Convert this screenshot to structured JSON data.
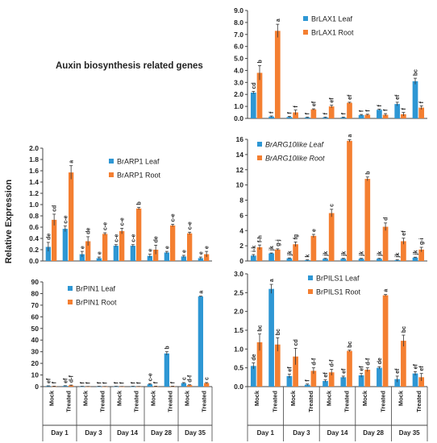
{
  "figure": {
    "title": "Auxin biosynthesis related genes",
    "ylabel": "Relative Expression"
  },
  "chart_data": [
    {
      "type": "bar",
      "panel": "top-right",
      "ylim": [
        0,
        9
      ],
      "yticks": [
        "0.0",
        "1.0",
        "2.0",
        "3.0",
        "4.0",
        "5.0",
        "6.0",
        "7.0",
        "8.0",
        "9.0"
      ],
      "legend_italic": false,
      "series": [
        {
          "name": "BrLAX1 Leaf",
          "color": "#2e97d4",
          "values": [
            2.15,
            0.15,
            0.12,
            0.08,
            0.08,
            0.08,
            0.28,
            0.72,
            1.2,
            3.1
          ],
          "errors": [
            0.1,
            0.05,
            0.05,
            0.03,
            0.03,
            0.03,
            0.05,
            0.05,
            0.15,
            0.25
          ],
          "letters": [
            "cd",
            "f",
            "f",
            "f",
            "f",
            "f",
            "f",
            "f",
            "ef",
            "bc"
          ]
        },
        {
          "name": "BrLAX1 Root",
          "color": "#f47f31",
          "values": [
            3.8,
            7.3,
            0.5,
            0.75,
            1.0,
            1.3,
            0.3,
            0.3,
            0.35,
            0.9
          ],
          "errors": [
            0.6,
            0.55,
            0.2,
            0.05,
            0.1,
            0.05,
            0.05,
            0.1,
            0.15,
            0.15
          ],
          "letters": [
            "b",
            "a",
            "f",
            "ef",
            "ef",
            "ef",
            "f",
            "f",
            "f",
            "f"
          ]
        }
      ]
    },
    {
      "type": "bar",
      "panel": "middle-left",
      "ylim": [
        0,
        2
      ],
      "yticks": [
        "0.0",
        "0.2",
        "0.4",
        "0.6",
        "0.8",
        "1.0",
        "1.2",
        "1.4",
        "1.6",
        "1.8",
        "2.0"
      ],
      "legend_italic": false,
      "series": [
        {
          "name": "BrARP1 Leaf",
          "color": "#2e97d4",
          "values": [
            0.25,
            0.57,
            0.12,
            0.05,
            0.27,
            0.27,
            0.09,
            0.15,
            0.08,
            0.05
          ],
          "errors": [
            0.08,
            0.05,
            0.05,
            0.02,
            0.02,
            0.02,
            0.03,
            0.02,
            0.02,
            0.02
          ],
          "letters": [
            "de",
            "c-e",
            "e",
            "e",
            "c-e",
            "c-e",
            "e",
            "e",
            "e",
            "e"
          ]
        },
        {
          "name": "BrARP1 Root",
          "color": "#f47f31",
          "values": [
            0.73,
            1.57,
            0.35,
            0.48,
            0.53,
            0.93,
            0.2,
            0.63,
            0.49,
            0.12
          ],
          "errors": [
            0.1,
            0.12,
            0.08,
            0.02,
            0.05,
            0.02,
            0.08,
            0.02,
            0.02,
            0.05
          ],
          "letters": [
            "cd",
            "a",
            "de",
            "c-e",
            "c-e",
            "b",
            "de",
            "c-e",
            "c-e",
            "e"
          ]
        }
      ]
    },
    {
      "type": "bar",
      "panel": "middle-right",
      "ylim": [
        0,
        16
      ],
      "yticks": [
        "0",
        "2",
        "4",
        "6",
        "8",
        "10",
        "12",
        "14",
        "16"
      ],
      "legend_italic": true,
      "series": [
        {
          "name": "BrARG10like Leaf",
          "color": "#2e97d4",
          "values": [
            0.7,
            1.0,
            0.35,
            0.1,
            0.3,
            0.3,
            0.3,
            0.3,
            0.1,
            0.45
          ],
          "errors": [
            0.15,
            0.05,
            0.05,
            0.05,
            0.05,
            0.05,
            0.05,
            0.05,
            0.05,
            0.05
          ],
          "letters": [
            "i-k",
            "jk",
            "jk",
            "k",
            "jk",
            "jk",
            "jk",
            "jk",
            "jk",
            "jk"
          ]
        },
        {
          "name": "BrARG10like Root",
          "color": "#f47f31",
          "values": [
            1.8,
            1.5,
            2.2,
            3.3,
            6.3,
            15.8,
            10.8,
            4.5,
            2.6,
            1.5
          ],
          "errors": [
            0.3,
            0.1,
            0.3,
            0.2,
            0.5,
            0.15,
            0.25,
            0.5,
            0.4,
            0.3
          ],
          "letters": [
            "f-h",
            "g-j",
            "fg",
            "e",
            "c",
            "a",
            "b",
            "d",
            "ef",
            "g-i"
          ]
        }
      ]
    },
    {
      "type": "bar",
      "panel": "bottom-left",
      "ylim": [
        0,
        90
      ],
      "yticks": [
        "0",
        "10",
        "20",
        "30",
        "40",
        "50",
        "60",
        "70",
        "80",
        "90"
      ],
      "legend_italic": false,
      "series": [
        {
          "name": "BrPIN1 Leaf",
          "color": "#2e97d4",
          "values": [
            0.5,
            0.6,
            0.2,
            0.2,
            0.2,
            0.2,
            2.0,
            28.5,
            3.0,
            77.5
          ],
          "errors": [
            0.2,
            0.2,
            0.1,
            0.1,
            0.1,
            0.1,
            0.5,
            1.5,
            0.5,
            0.3
          ],
          "letters": [
            "ef",
            "ef",
            "f",
            "f",
            "f",
            "f",
            "c-e",
            "b",
            "c",
            "a"
          ]
        },
        {
          "name": "BrPIN1 Root",
          "color": "#f47f31",
          "values": [
            0.3,
            1.0,
            0.1,
            0.1,
            0.1,
            0.1,
            0.3,
            0.3,
            1.3,
            3.0
          ],
          "errors": [
            0.1,
            0.3,
            0.05,
            0.05,
            0.05,
            0.05,
            0.1,
            0.1,
            0.3,
            0.5
          ],
          "letters": [
            "f",
            "d-f",
            "f",
            "f",
            "f",
            "f",
            "f",
            "f",
            "d-f",
            "c"
          ]
        }
      ]
    },
    {
      "type": "bar",
      "panel": "bottom-right",
      "ylim": [
        0,
        3
      ],
      "yticks": [
        "0.0",
        "0.5",
        "1.0",
        "1.5",
        "2.0",
        "2.5",
        "3.0"
      ],
      "legend_italic": false,
      "series": [
        {
          "name": "BrPILS1 Leaf",
          "color": "#2e97d4",
          "values": [
            0.55,
            2.6,
            0.28,
            0.05,
            0.15,
            0.25,
            0.3,
            0.5,
            0.2,
            0.35
          ],
          "errors": [
            0.08,
            0.12,
            0.05,
            0.02,
            0.03,
            0.03,
            0.05,
            0.03,
            0.08,
            0.05
          ],
          "letters": [
            "de",
            "a",
            "ef",
            "f",
            "ef",
            "ef",
            "ef",
            "de",
            "ef",
            "ef"
          ]
        },
        {
          "name": "BrPILS1 Root",
          "color": "#f47f31",
          "values": [
            1.18,
            1.12,
            0.8,
            0.42,
            0.38,
            0.95,
            0.45,
            2.43,
            1.22,
            0.25
          ],
          "errors": [
            0.22,
            0.18,
            0.22,
            0.08,
            0.08,
            0.02,
            0.05,
            0.02,
            0.15,
            0.1
          ],
          "letters": [
            "bc",
            "bc",
            "cd",
            "d-f",
            "d-f",
            "bc",
            "d-f",
            "a",
            "bc",
            "ef"
          ]
        }
      ]
    }
  ],
  "categories": {
    "treatments": [
      "Mock",
      "Treated",
      "Mock",
      "Treated",
      "Mock",
      "Treated",
      "Mock",
      "Treated",
      "Mock",
      "Treated"
    ],
    "days": [
      "Day 1",
      "Day 3",
      "Day 14",
      "Day 28",
      "Day 35"
    ]
  }
}
